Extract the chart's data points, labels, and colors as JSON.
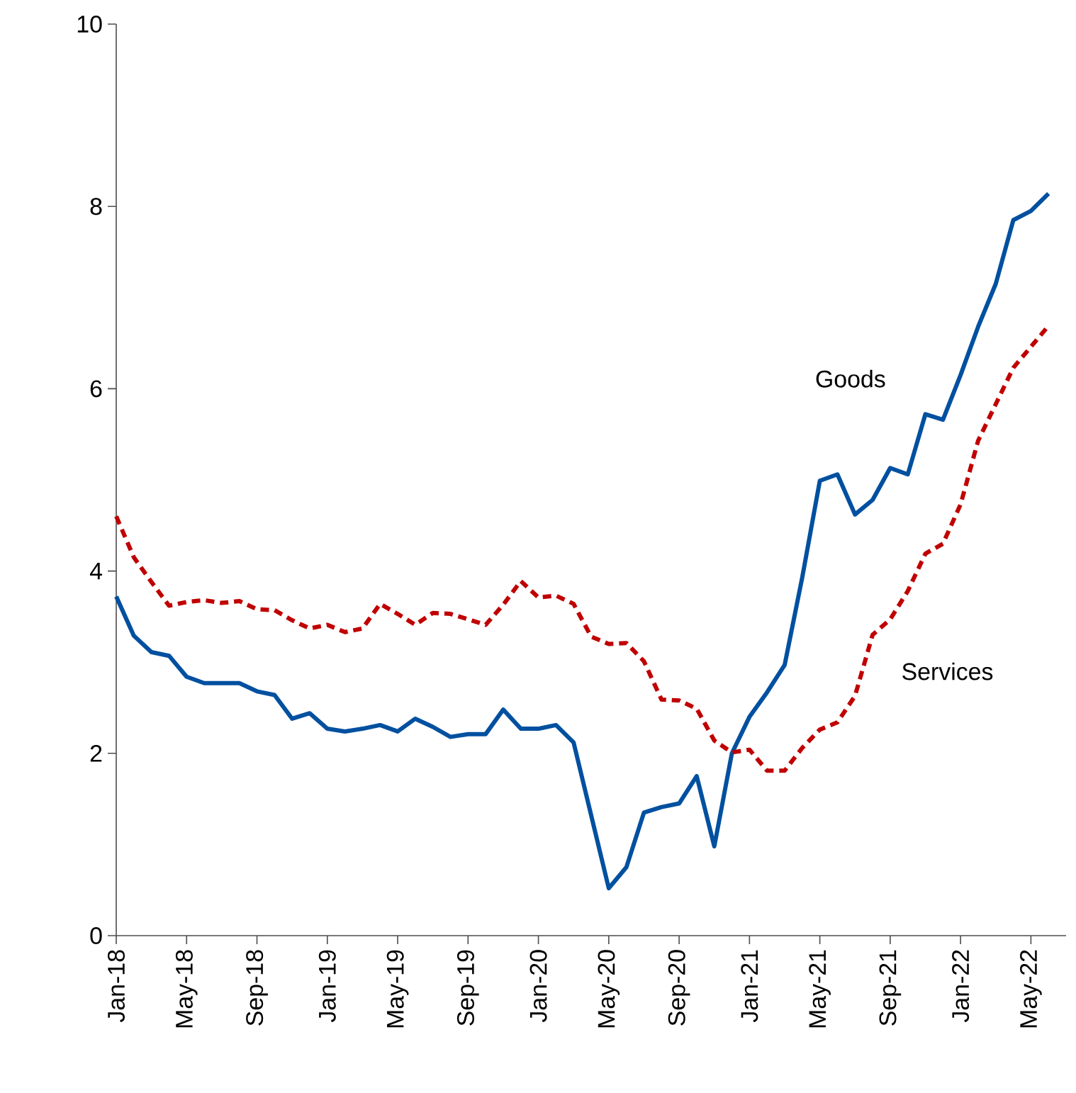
{
  "chart_data": {
    "type": "line",
    "x": [
      "2018-01",
      "2018-02",
      "2018-03",
      "2018-04",
      "2018-05",
      "2018-06",
      "2018-07",
      "2018-08",
      "2018-09",
      "2018-10",
      "2018-11",
      "2018-12",
      "2019-01",
      "2019-02",
      "2019-03",
      "2019-04",
      "2019-05",
      "2019-06",
      "2019-07",
      "2019-08",
      "2019-09",
      "2019-10",
      "2019-11",
      "2019-12",
      "2020-01",
      "2020-02",
      "2020-03",
      "2020-04",
      "2020-05",
      "2020-06",
      "2020-07",
      "2020-08",
      "2020-09",
      "2020-10",
      "2020-11",
      "2020-12",
      "2021-01",
      "2021-02",
      "2021-03",
      "2021-04",
      "2021-05",
      "2021-06",
      "2021-07",
      "2021-08",
      "2021-09",
      "2021-10",
      "2021-11",
      "2021-12",
      "2022-01",
      "2022-02",
      "2022-03",
      "2022-04",
      "2022-05",
      "2022-06"
    ],
    "series": [
      {
        "name": "Goods",
        "color": "#0050a0",
        "line_style": "solid",
        "values": [
          3.72,
          3.29,
          3.11,
          3.07,
          2.84,
          2.77,
          2.77,
          2.77,
          2.68,
          2.64,
          2.38,
          2.44,
          2.27,
          2.24,
          2.27,
          2.31,
          2.24,
          2.38,
          2.29,
          2.18,
          2.21,
          2.21,
          2.48,
          2.27,
          2.27,
          2.31,
          2.12,
          1.32,
          0.52,
          0.75,
          1.35,
          1.41,
          1.45,
          1.75,
          0.98,
          2.0,
          2.4,
          2.67,
          2.97,
          3.93,
          4.99,
          5.06,
          4.62,
          4.78,
          5.13,
          5.06,
          5.72,
          5.66,
          6.15,
          6.68,
          7.15,
          7.85,
          7.95,
          8.14
        ]
      },
      {
        "name": "Services",
        "color": "#c00000",
        "line_style": "dashed",
        "values": [
          4.6,
          4.15,
          3.88,
          3.62,
          3.66,
          3.68,
          3.65,
          3.67,
          3.58,
          3.57,
          3.46,
          3.37,
          3.41,
          3.33,
          3.37,
          3.64,
          3.53,
          3.41,
          3.54,
          3.53,
          3.47,
          3.41,
          3.63,
          3.89,
          3.71,
          3.73,
          3.64,
          3.28,
          3.2,
          3.21,
          3.01,
          2.59,
          2.58,
          2.49,
          2.14,
          2.01,
          2.04,
          1.81,
          1.81,
          2.06,
          2.26,
          2.34,
          2.63,
          3.3,
          3.47,
          3.78,
          4.19,
          4.3,
          4.73,
          5.43,
          5.83,
          6.23,
          6.46,
          6.69
        ]
      }
    ],
    "xlim": [
      "2018-01",
      "2022-07"
    ],
    "xticks": [
      {
        "value": "2018-01",
        "label": "Jan-18"
      },
      {
        "value": "2018-05",
        "label": "May-18"
      },
      {
        "value": "2018-09",
        "label": "Sep-18"
      },
      {
        "value": "2019-01",
        "label": "Jan-19"
      },
      {
        "value": "2019-05",
        "label": "May-19"
      },
      {
        "value": "2019-09",
        "label": "Sep-19"
      },
      {
        "value": "2020-01",
        "label": "Jan-20"
      },
      {
        "value": "2020-05",
        "label": "May-20"
      },
      {
        "value": "2020-09",
        "label": "Sep-20"
      },
      {
        "value": "2021-01",
        "label": "Jan-21"
      },
      {
        "value": "2021-05",
        "label": "May-21"
      },
      {
        "value": "2021-09",
        "label": "Sep-21"
      },
      {
        "value": "2022-01",
        "label": "Jan-22"
      },
      {
        "value": "2022-05",
        "label": "May-22"
      }
    ],
    "ylim": [
      0,
      10
    ],
    "yticks": [
      0,
      2,
      4,
      6,
      8,
      10
    ],
    "grid": false,
    "legend": false,
    "marker": "none"
  }
}
